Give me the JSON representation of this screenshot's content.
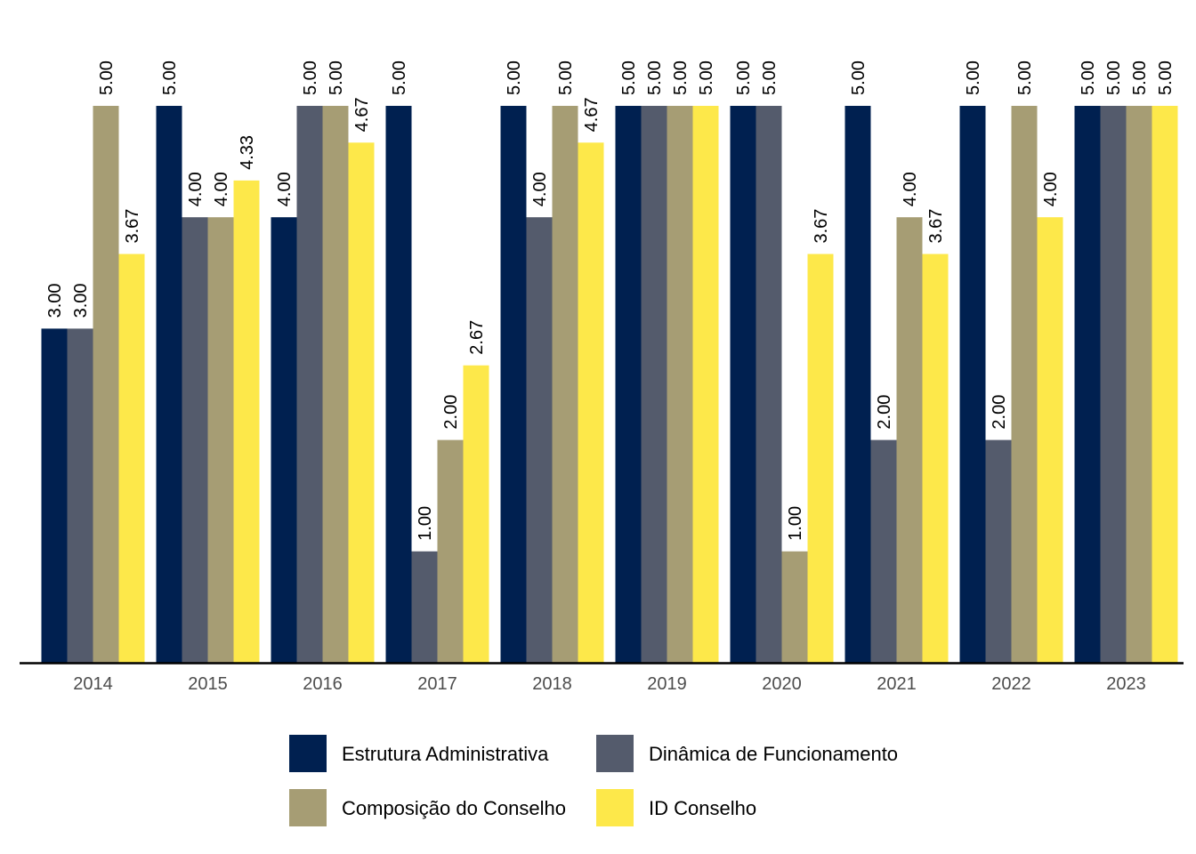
{
  "chart_data": {
    "type": "bar",
    "categories": [
      "2014",
      "2015",
      "2016",
      "2017",
      "2018",
      "2019",
      "2020",
      "2021",
      "2022",
      "2023"
    ],
    "series": [
      {
        "name": "Estrutura Administrativa",
        "color": "#002050",
        "values": [
          3.0,
          5.0,
          4.0,
          5.0,
          5.0,
          5.0,
          5.0,
          5.0,
          5.0,
          5.0
        ]
      },
      {
        "name": "Dinâmica de Funcionamento",
        "color": "#545b6c",
        "values": [
          3.0,
          4.0,
          5.0,
          1.0,
          4.0,
          5.0,
          5.0,
          2.0,
          2.0,
          5.0
        ]
      },
      {
        "name": "Composição do Conselho",
        "color": "#a69d74",
        "values": [
          5.0,
          4.0,
          5.0,
          2.0,
          5.0,
          5.0,
          1.0,
          4.0,
          5.0,
          5.0
        ]
      },
      {
        "name": "ID Conselho",
        "color": "#fde84a",
        "values": [
          3.67,
          4.33,
          4.67,
          2.67,
          4.67,
          5.0,
          3.67,
          3.67,
          4.0,
          5.0
        ]
      }
    ],
    "ylim": [
      0,
      5
    ],
    "data_labels_decimals": 2,
    "title": "",
    "xlabel": "",
    "ylabel": "",
    "grid": false,
    "legend_position": "bottom"
  }
}
